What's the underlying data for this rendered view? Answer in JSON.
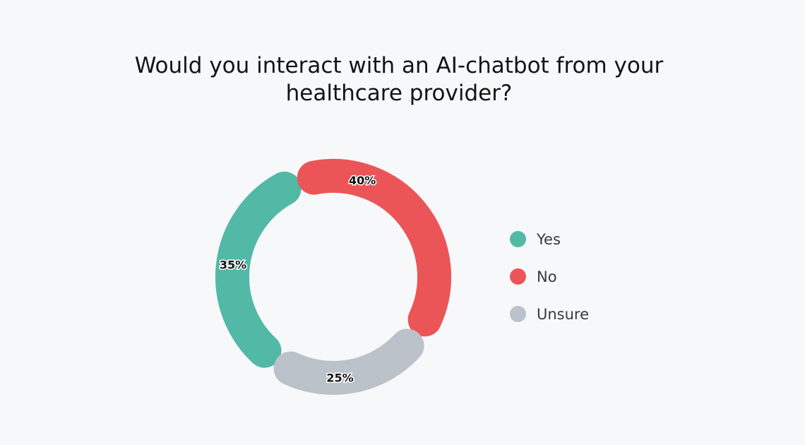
{
  "chart_data": {
    "type": "donut",
    "title": "Would you interact with an AI-chatbot from your healthcare provider?",
    "title_lines": [
      "Would you interact with an AI-chatbot from your",
      "healthcare provider?"
    ],
    "categories": [
      "Yes",
      "No",
      "Unsure"
    ],
    "values": [
      35,
      40,
      25
    ],
    "value_labels": [
      "35%",
      "40%",
      "25%"
    ],
    "colors": [
      "#52b9a6",
      "#ec5558",
      "#bbc2c9"
    ],
    "legend_position": "right"
  }
}
